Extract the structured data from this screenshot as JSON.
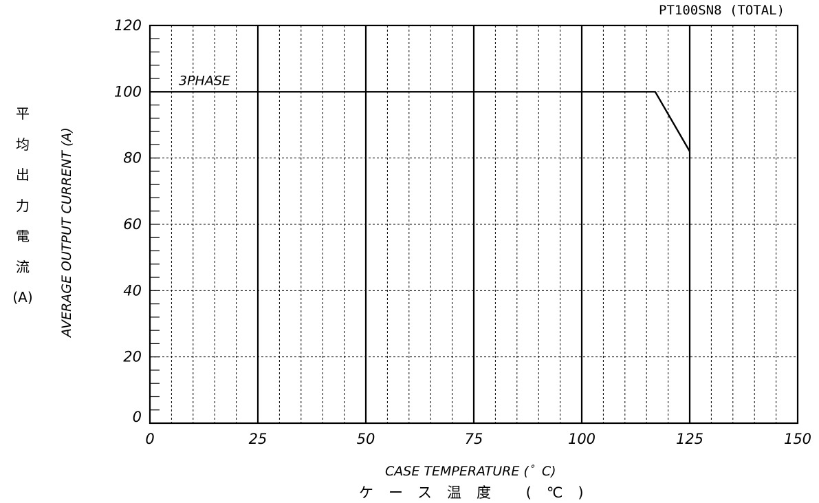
{
  "chart_data": {
    "type": "line",
    "title": "PT100SN8 (TOTAL)",
    "xlabel": "CASE TEMPERATURE (゜C)",
    "xlabel_jp": "ケース温度 (℃)",
    "ylabel": "AVERAGE OUTPUT CURRENT (A)",
    "ylabel_jp_chars": [
      "平",
      "均",
      "出",
      "力",
      "電",
      "流",
      "(A)"
    ],
    "xlim": [
      0,
      150
    ],
    "ylim": [
      0,
      120
    ],
    "x_ticks": [
      "0",
      "25",
      "50",
      "75",
      "100",
      "125",
      "150"
    ],
    "y_ticks": [
      "0",
      "20",
      "40",
      "60",
      "80",
      "100",
      "120"
    ],
    "grid": true,
    "series": [
      {
        "name": "3PHASE",
        "x": [
          0,
          117,
          125
        ],
        "y": [
          100,
          100,
          82
        ]
      }
    ]
  },
  "colors": {
    "line": "#000000",
    "grid": "#000000",
    "background": "#ffffff"
  }
}
